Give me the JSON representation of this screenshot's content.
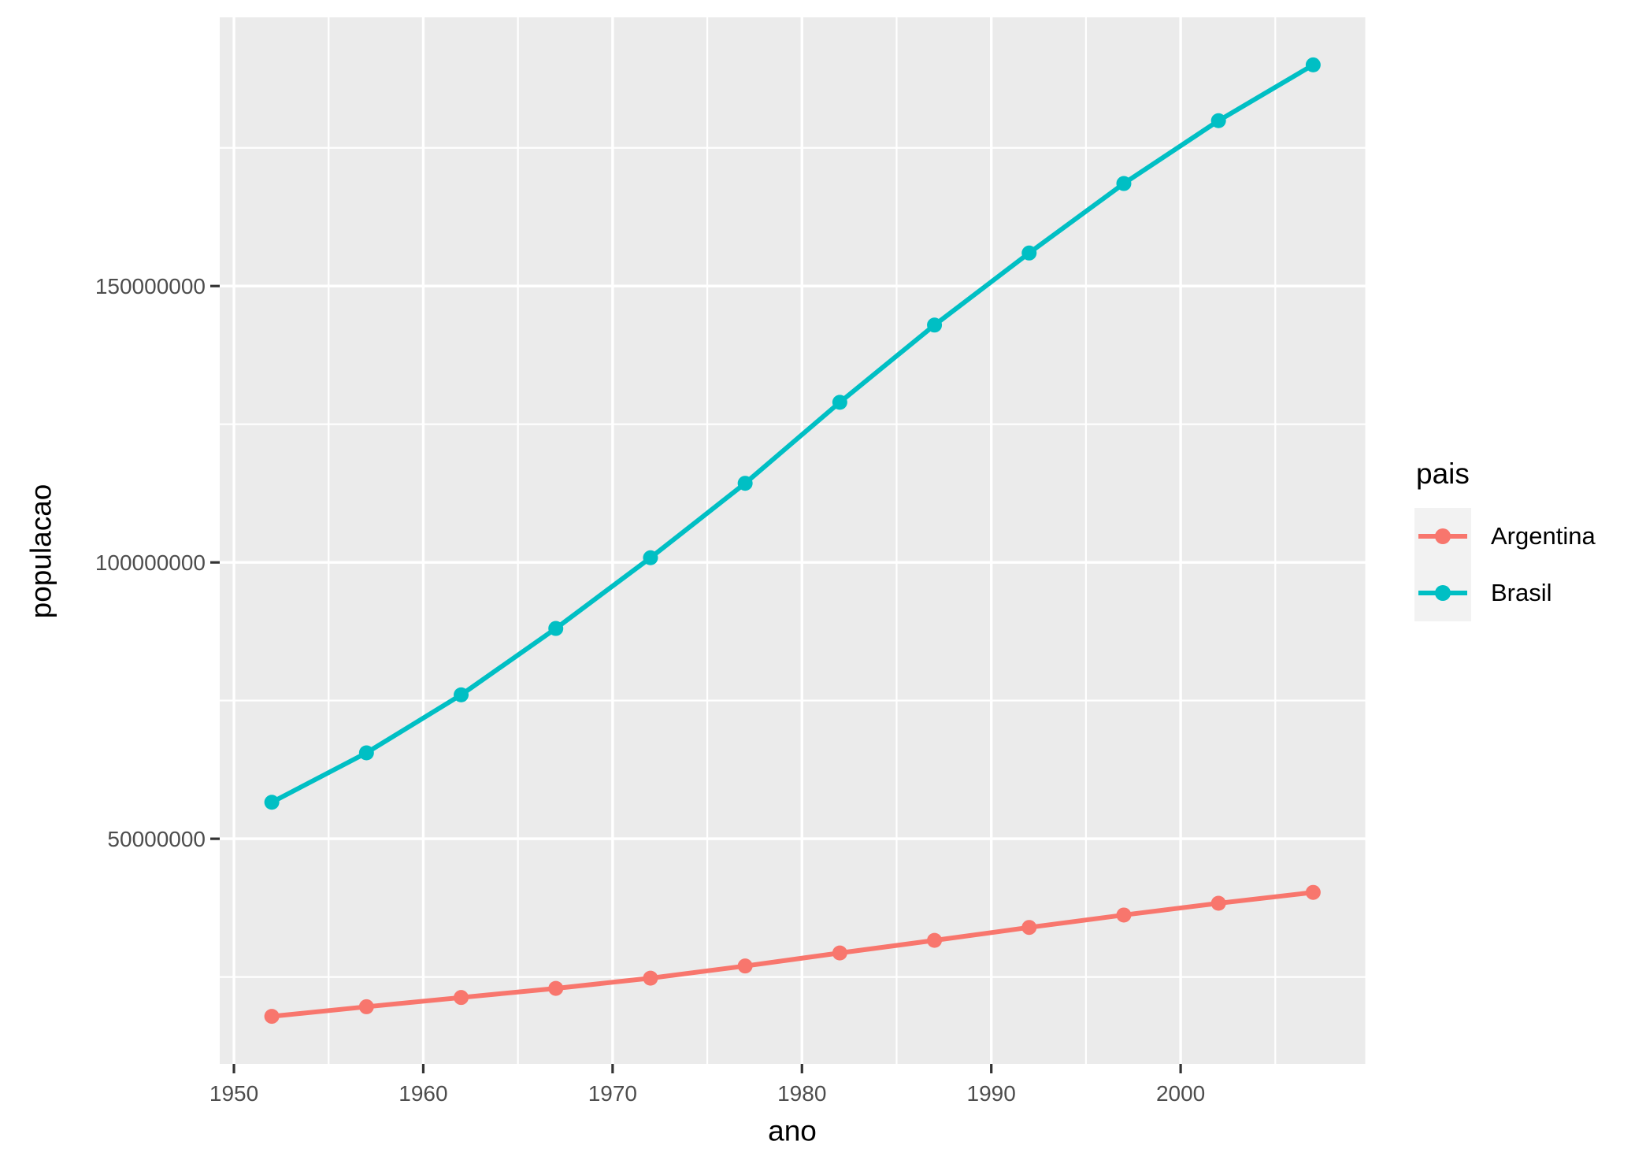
{
  "chart_data": {
    "type": "line",
    "title": "",
    "xlabel": "ano",
    "ylabel": "populacao",
    "x": [
      1952,
      1957,
      1962,
      1967,
      1972,
      1977,
      1982,
      1987,
      1992,
      1997,
      2002,
      2007
    ],
    "series": [
      {
        "name": "Argentina",
        "color": "#F8766D",
        "values": [
          17876956,
          19610538,
          21283783,
          22934225,
          24779799,
          26983828,
          29341374,
          31620918,
          33958947,
          36203463,
          38331121,
          40301927
        ]
      },
      {
        "name": "Brasil",
        "color": "#00BFC4",
        "values": [
          56602560,
          65551171,
          76039390,
          88049823,
          100840058,
          114313951,
          128962939,
          142938076,
          155975974,
          168546719,
          179914212,
          190010647
        ]
      }
    ],
    "xlim": [
      1949.25,
      2009.75
    ],
    "ylim": [
      9270271,
      198617332
    ],
    "x_ticks": {
      "values": [
        1950,
        1960,
        1970,
        1980,
        1990,
        2000
      ],
      "labels": [
        "1950",
        "1960",
        "1970",
        "1980",
        "1990",
        "2000"
      ]
    },
    "y_ticks": {
      "values": [
        50000000,
        100000000,
        150000000
      ],
      "labels": [
        "50000000",
        "100000000",
        "150000000"
      ]
    },
    "x_minor": [
      1955,
      1965,
      1975,
      1985,
      1995,
      2005
    ],
    "y_minor": [
      25000000,
      75000000,
      125000000,
      175000000
    ],
    "grid": true,
    "legend": {
      "title": "pais",
      "position": "right",
      "entries": [
        {
          "label": "Argentina",
          "color": "#F8766D"
        },
        {
          "label": "Brasil",
          "color": "#00BFC4"
        }
      ]
    },
    "style": {
      "panel_bg": "#EBEBEB",
      "grid_color": "#FFFFFF",
      "tick_mark_color": "#333333",
      "tick_label_color": "#4D4D4D",
      "axis_title_color": "#000000",
      "legend_key_bg": "#F2F2F2"
    }
  }
}
